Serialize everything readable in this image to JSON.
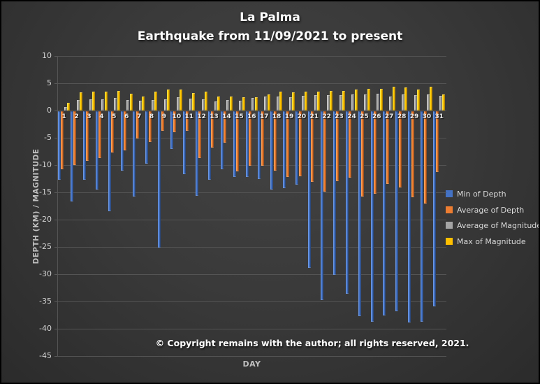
{
  "title": {
    "line1": "La Palma",
    "line2": "Earthquake from 11/09/2021 to present"
  },
  "annotation": "© Copyright remains with the author; all rights reserved, 2021.",
  "axes": {
    "x_title": "DAY",
    "y_title": "DEPTH (KM) / MAGNITUDE"
  },
  "colors": {
    "background": "#3a3a3a",
    "gridline": "#545454",
    "blue": "#4472C4",
    "orange": "#ED7D31",
    "gray": "#A5A5A5",
    "yellow": "#FFC000",
    "title_text": "#ffffff",
    "axis_text": "#d2d2d2",
    "muted_text": "#bfbfbf"
  },
  "chart_data": {
    "type": "bar",
    "title": "La Palma — Earthquake from 11/09/2021 to present",
    "xlabel": "DAY",
    "ylabel": "DEPTH (KM) / MAGNITUDE",
    "ylim": [
      -45,
      10
    ],
    "y_ticks": [
      10,
      5,
      0,
      -5,
      -10,
      -15,
      -20,
      -25,
      -30,
      -35,
      -40,
      -45
    ],
    "grid": true,
    "legend_position": "right",
    "categories": [
      "1",
      "2",
      "3",
      "4",
      "5",
      "6",
      "7",
      "8",
      "9",
      "10",
      "11",
      "12",
      "13",
      "14",
      "15",
      "16",
      "17",
      "18",
      "19",
      "20",
      "21",
      "22",
      "23",
      "24",
      "25",
      "26",
      "27",
      "28",
      "29",
      "30",
      "31"
    ],
    "series": [
      {
        "name": "Min of Depth",
        "color": "#4472C4",
        "values": [
          -12.5,
          -16.5,
          -12.5,
          -14.4,
          -18.3,
          -10.9,
          -15.7,
          -9.6,
          -25.0,
          -6.9,
          -11.6,
          -15.5,
          -12.6,
          -10.6,
          -12.0,
          -12.0,
          -12.4,
          -14.4,
          -14.1,
          -13.5,
          -28.7,
          -34.6,
          -30.0,
          -33.5,
          -37.5,
          -38.6,
          -37.4,
          -36.7,
          -38.7,
          -38.6,
          -35.8
        ]
      },
      {
        "name": "Average of Depth",
        "color": "#ED7D31",
        "values": [
          -10.7,
          -9.9,
          -9.1,
          -8.6,
          -7.6,
          -7.2,
          -5.0,
          -5.7,
          -3.6,
          -3.8,
          -3.6,
          -8.6,
          -6.7,
          -5.8,
          -11.0,
          -10.0,
          -10.0,
          -10.9,
          -12.0,
          -11.9,
          -13.0,
          -14.7,
          -12.8,
          -12.2,
          -15.7,
          -15.1,
          -13.3,
          -14.0,
          -15.8,
          -16.9,
          -11.2
        ]
      },
      {
        "name": "Average of Magnitude",
        "color": "#A5A5A5",
        "values": [
          0.7,
          1.9,
          2.0,
          2.1,
          2.3,
          1.9,
          1.8,
          1.9,
          2.0,
          2.5,
          2.2,
          2.0,
          1.7,
          1.9,
          1.8,
          2.3,
          2.6,
          2.6,
          2.4,
          2.7,
          2.8,
          2.8,
          2.8,
          3.0,
          3.0,
          3.1,
          2.6,
          3.0,
          2.8,
          3.0,
          2.7
        ]
      },
      {
        "name": "Max of Magnitude",
        "color": "#FFC000",
        "values": [
          1.4,
          3.3,
          3.4,
          3.5,
          3.6,
          3.1,
          2.6,
          3.5,
          3.8,
          3.9,
          3.2,
          3.4,
          2.6,
          2.6,
          2.5,
          2.4,
          3.0,
          3.4,
          3.3,
          3.5,
          3.5,
          3.6,
          3.6,
          3.8,
          4.0,
          4.0,
          4.4,
          4.2,
          3.9,
          4.4,
          3.0
        ]
      }
    ]
  }
}
